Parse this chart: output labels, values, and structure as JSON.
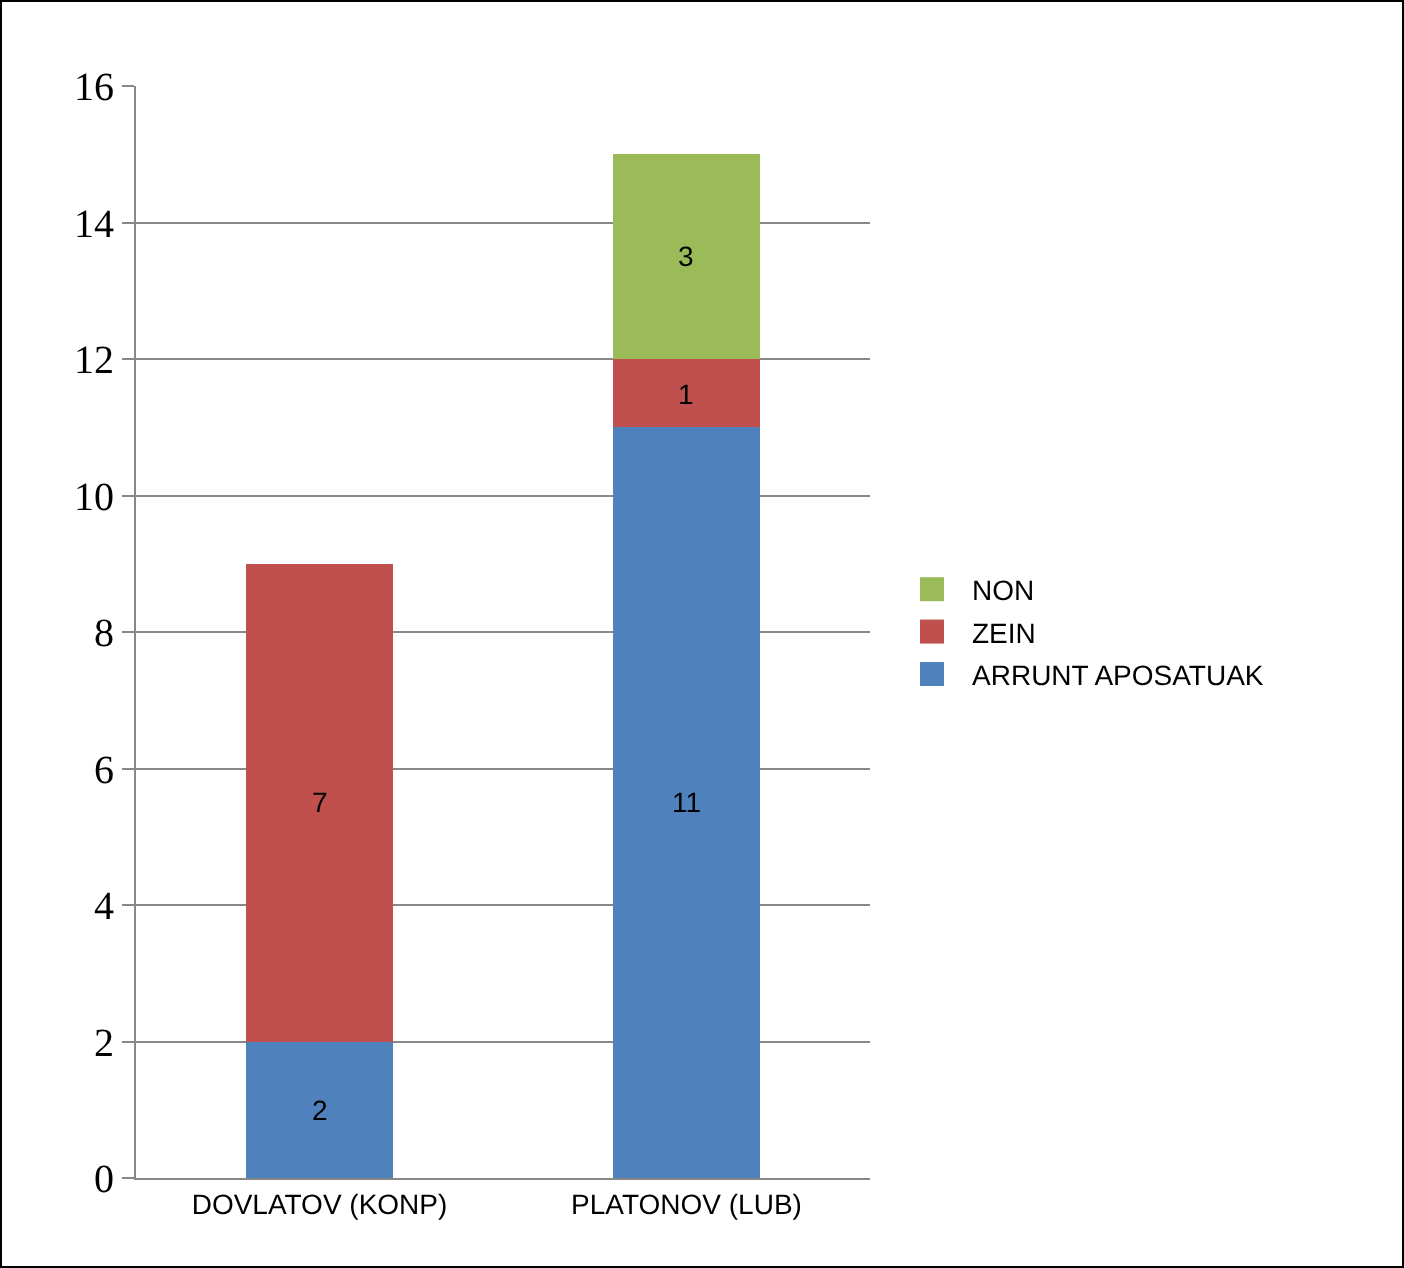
{
  "chart_data": {
    "type": "bar",
    "stacked": true,
    "categories": [
      "DOVLATOV (KONP)",
      "PLATONOV (LUB)"
    ],
    "series": [
      {
        "name": "ARRUNT APOSATUAK",
        "color": "#4f81bd",
        "values": [
          2,
          11
        ]
      },
      {
        "name": "ZEIN",
        "color": "#c0504d",
        "values": [
          7,
          1
        ]
      },
      {
        "name": "NON",
        "color": "#9bbb59",
        "values": [
          null,
          3
        ]
      }
    ],
    "ylim": [
      0,
      16
    ],
    "yticks": [
      0,
      2,
      4,
      6,
      8,
      10,
      12,
      14,
      16
    ],
    "grid": "y",
    "legend": "right",
    "data_labels": true
  }
}
